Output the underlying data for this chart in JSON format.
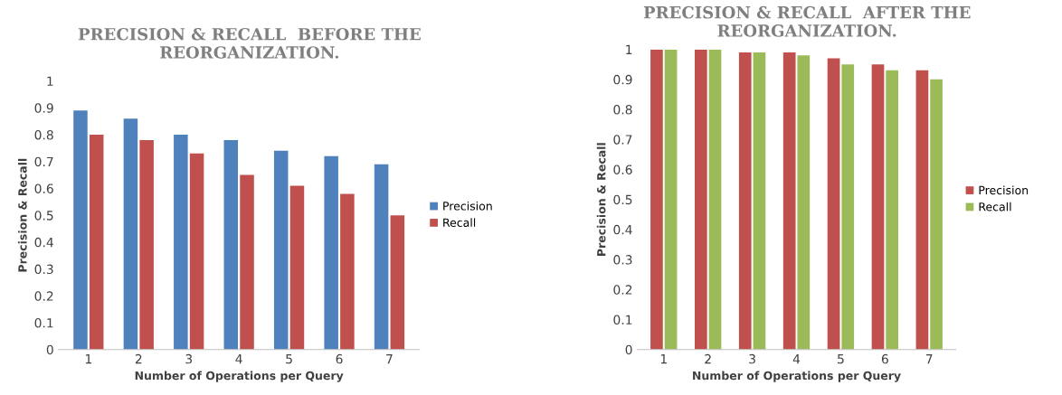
{
  "chart_data": [
    {
      "type": "bar",
      "title": "PRECISION & RECALL  BEFORE THE REORGANIZATION.",
      "xlabel": "Number of Operations per Query",
      "ylabel": "Precision & Recall",
      "categories": [
        "1",
        "2",
        "3",
        "4",
        "5",
        "6",
        "7"
      ],
      "series": [
        {
          "name": "Precision",
          "color": "#4f81bd",
          "values": [
            0.89,
            0.86,
            0.8,
            0.78,
            0.74,
            0.72,
            0.69
          ]
        },
        {
          "name": "Recall",
          "color": "#c0504d",
          "values": [
            0.8,
            0.78,
            0.73,
            0.65,
            0.61,
            0.58,
            0.5
          ]
        }
      ],
      "ylim": [
        0,
        1
      ],
      "yticks": [
        0,
        0.1,
        0.2,
        0.3,
        0.4,
        0.5,
        0.6,
        0.7,
        0.8,
        0.9,
        1
      ],
      "grid": false,
      "legend": "right"
    },
    {
      "type": "bar",
      "title": "PRECISION & RECALL  AFTER THE REORGANIZATION.",
      "xlabel": "Number of Operations per Query",
      "ylabel": "Precision & Recall",
      "categories": [
        "1",
        "2",
        "3",
        "4",
        "5",
        "6",
        "7"
      ],
      "series": [
        {
          "name": "Precision",
          "color": "#c0504d",
          "values": [
            1.0,
            1.0,
            0.99,
            0.99,
            0.97,
            0.95,
            0.93
          ]
        },
        {
          "name": "Recall",
          "color": "#9bbb59",
          "values": [
            1.0,
            1.0,
            0.99,
            0.98,
            0.95,
            0.93,
            0.9
          ]
        }
      ],
      "ylim": [
        0,
        1
      ],
      "yticks": [
        0,
        0.1,
        0.2,
        0.3,
        0.4,
        0.5,
        0.6,
        0.7,
        0.8,
        0.9,
        1
      ],
      "grid": false,
      "legend": "right"
    }
  ]
}
